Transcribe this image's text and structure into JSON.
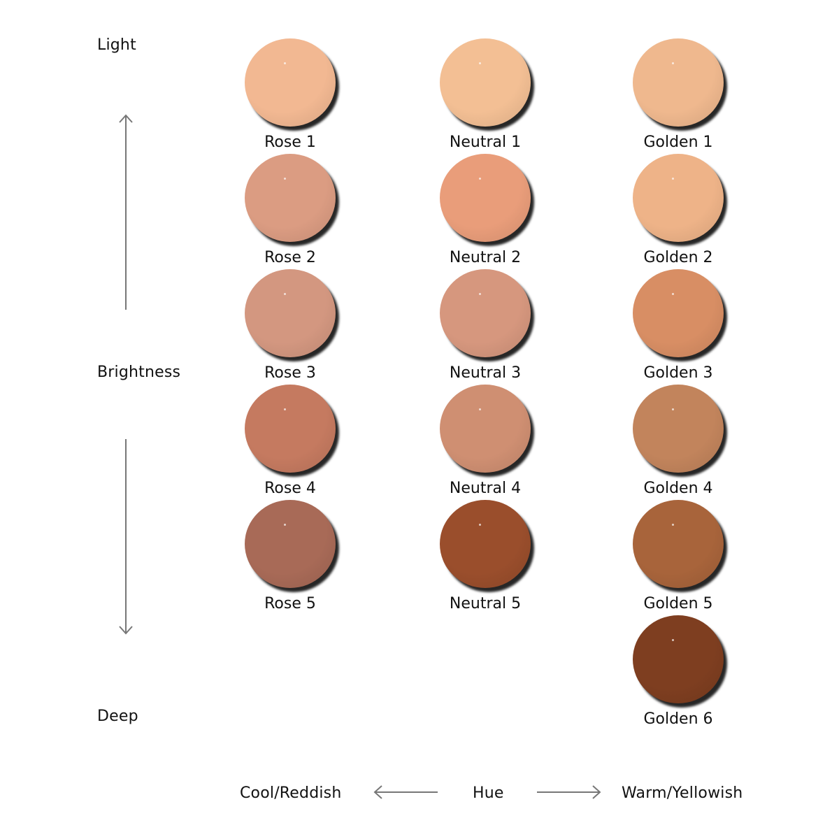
{
  "axes": {
    "vertical": {
      "top": "Light",
      "middle": "Brightness",
      "bottom": "Deep"
    },
    "horizontal": {
      "left": "Cool/Reddish",
      "middle": "Hue",
      "right": "Warm/Yellowish"
    }
  },
  "columns": [
    {
      "name": "Rose",
      "swatches": [
        {
          "label": "Rose 1",
          "color": "#f2b892"
        },
        {
          "label": "Rose 2",
          "color": "#db9c82"
        },
        {
          "label": "Rose 3",
          "color": "#d39780"
        },
        {
          "label": "Rose 4",
          "color": "#c57a60"
        },
        {
          "label": "Rose 5",
          "color": "#a86a57"
        }
      ]
    },
    {
      "name": "Neutral",
      "swatches": [
        {
          "label": "Neutral 1",
          "color": "#f3bf94"
        },
        {
          "label": "Neutral 2",
          "color": "#e99d7a"
        },
        {
          "label": "Neutral 3",
          "color": "#d6977e"
        },
        {
          "label": "Neutral 4",
          "color": "#cf8f72"
        },
        {
          "label": "Neutral 5",
          "color": "#9a4e2c"
        }
      ]
    },
    {
      "name": "Golden",
      "swatches": [
        {
          "label": "Golden 1",
          "color": "#efb88e"
        },
        {
          "label": "Golden 2",
          "color": "#eeb388"
        },
        {
          "label": "Golden 3",
          "color": "#d88e64"
        },
        {
          "label": "Golden 4",
          "color": "#c2845c"
        },
        {
          "label": "Golden 5",
          "color": "#a8643b"
        },
        {
          "label": "Golden 6",
          "color": "#7e3e20"
        }
      ]
    }
  ]
}
